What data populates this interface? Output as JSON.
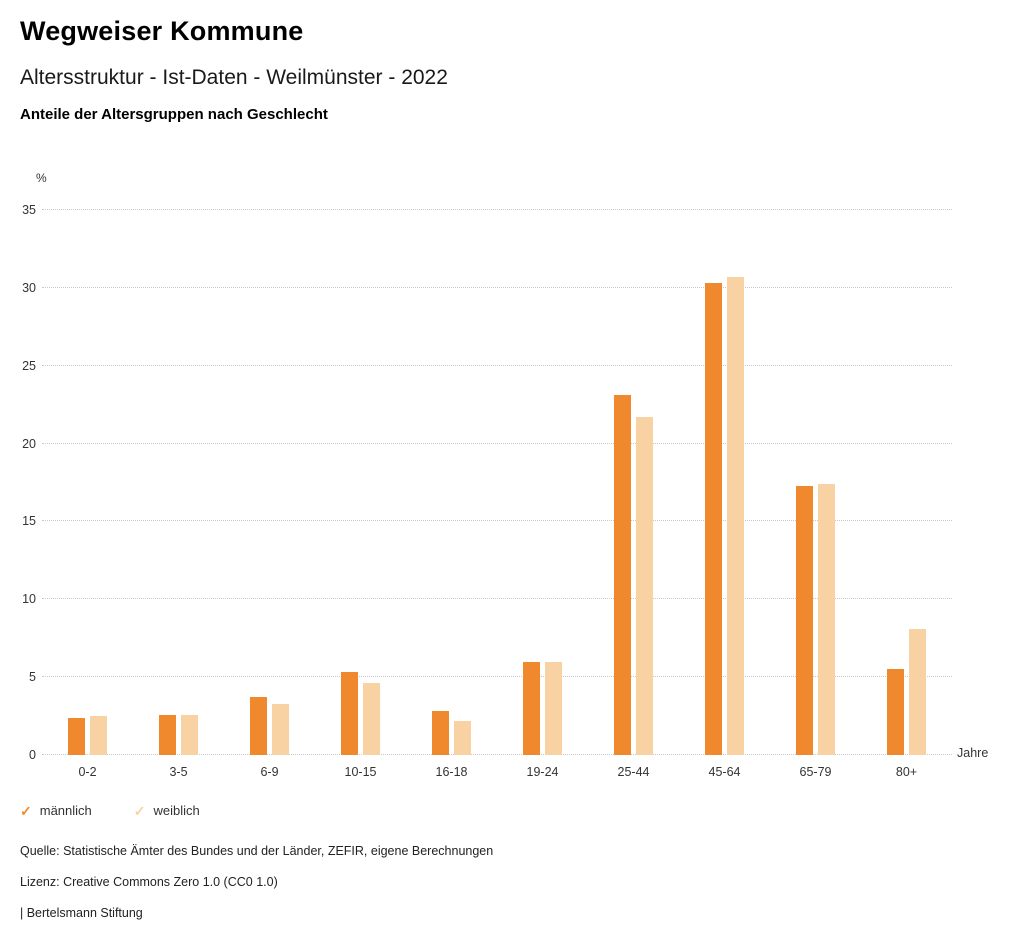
{
  "header": {
    "title": "Wegweiser Kommune",
    "subtitle": "Altersstruktur - Ist-Daten - Weilmünster - 2022",
    "heading": "Anteile der Altersgruppen nach Geschlecht"
  },
  "chart_data": {
    "type": "bar",
    "categories": [
      "0-2",
      "3-5",
      "6-9",
      "10-15",
      "16-18",
      "19-24",
      "25-44",
      "45-64",
      "65-79",
      "80+"
    ],
    "series": [
      {
        "name": "männlich",
        "color": "#f0882d",
        "values": [
          2.4,
          2.6,
          3.7,
          5.3,
          2.8,
          6.0,
          23.1,
          30.3,
          17.3,
          5.5
        ]
      },
      {
        "name": "weiblich",
        "color": "#f8d2a2",
        "values": [
          2.5,
          2.6,
          3.3,
          4.6,
          2.2,
          6.0,
          21.7,
          30.7,
          17.4,
          8.1
        ]
      }
    ],
    "title": "Anteile der Altersgruppen nach Geschlecht",
    "xlabel": "Jahre",
    "ylabel": "%",
    "ylim": [
      0,
      35
    ],
    "ytick_step": 5,
    "grid": true,
    "legend_position": "bottom",
    "legend_marker": "✓"
  },
  "footer": {
    "source": "Quelle: Statistische Ämter des Bundes und der Länder, ZEFIR, eigene Berechnungen",
    "license": "Lizenz: Creative Commons Zero 1.0 (CC0 1.0)",
    "attribution": "| Bertelsmann Stiftung"
  }
}
